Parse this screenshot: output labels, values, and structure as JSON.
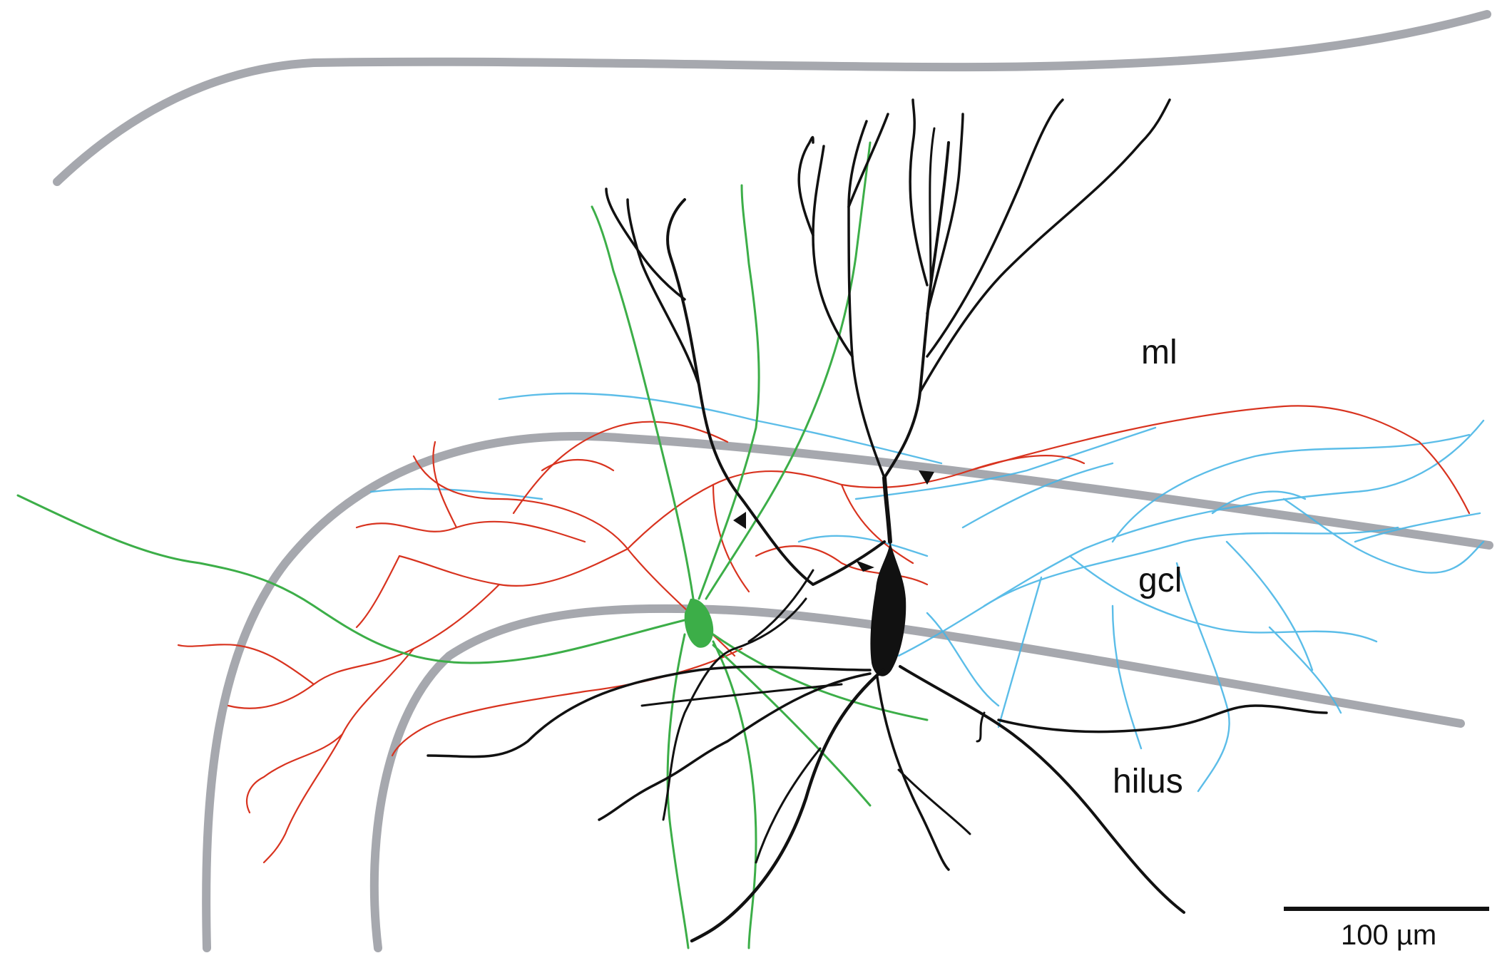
{
  "labels": {
    "ml": "ml",
    "gcl": "gcl",
    "hilus": "hilus",
    "scale_bar": "100 µm"
  },
  "colors": {
    "layer_boundary": "#a6a8ae",
    "principal_cell": "#111111",
    "interneuron_green": "#3cae48",
    "axon_red": "#d8331f",
    "axon_blue": "#4ab6e6",
    "scale_bar": "#111111"
  }
}
